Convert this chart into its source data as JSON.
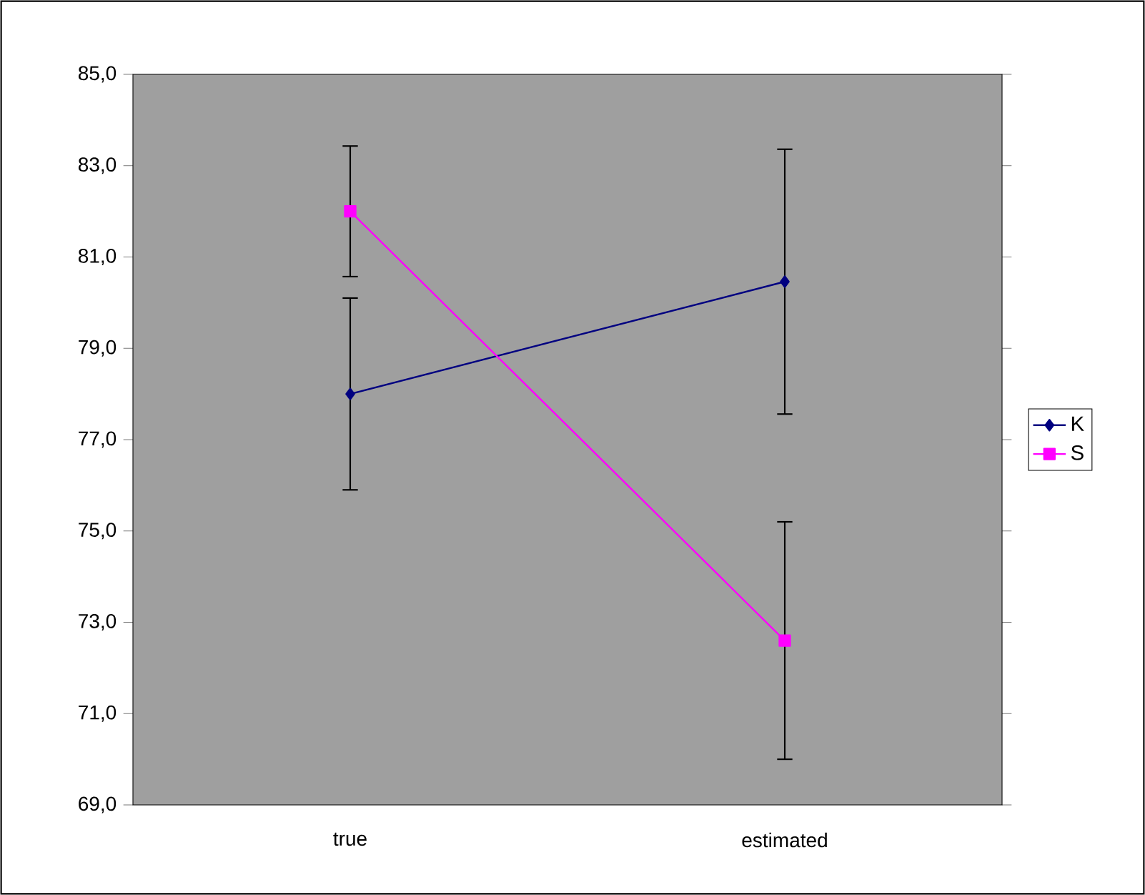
{
  "chart_data": {
    "type": "line",
    "categories": [
      "true",
      "estimated"
    ],
    "series": [
      {
        "name": "K",
        "color": "#000080",
        "marker": "diamond",
        "values": [
          78.0,
          80.46
        ],
        "errors": [
          2.1,
          2.9
        ]
      },
      {
        "name": "S",
        "color": "#ff00ff",
        "marker": "square",
        "values": [
          82.0,
          72.6
        ],
        "errors": [
          1.43,
          2.6
        ]
      }
    ],
    "ylim": [
      69,
      85
    ],
    "yticks": [
      {
        "value": 69,
        "label": "69,0"
      },
      {
        "value": 71,
        "label": "71,0"
      },
      {
        "value": 73,
        "label": "73,0"
      },
      {
        "value": 75,
        "label": "75,0"
      },
      {
        "value": 77,
        "label": "77,0"
      },
      {
        "value": 79,
        "label": "79,0"
      },
      {
        "value": 81,
        "label": "81,0"
      },
      {
        "value": 83,
        "label": "83,0"
      },
      {
        "value": 85,
        "label": "85,0"
      }
    ],
    "grid": false,
    "legend": "right"
  }
}
